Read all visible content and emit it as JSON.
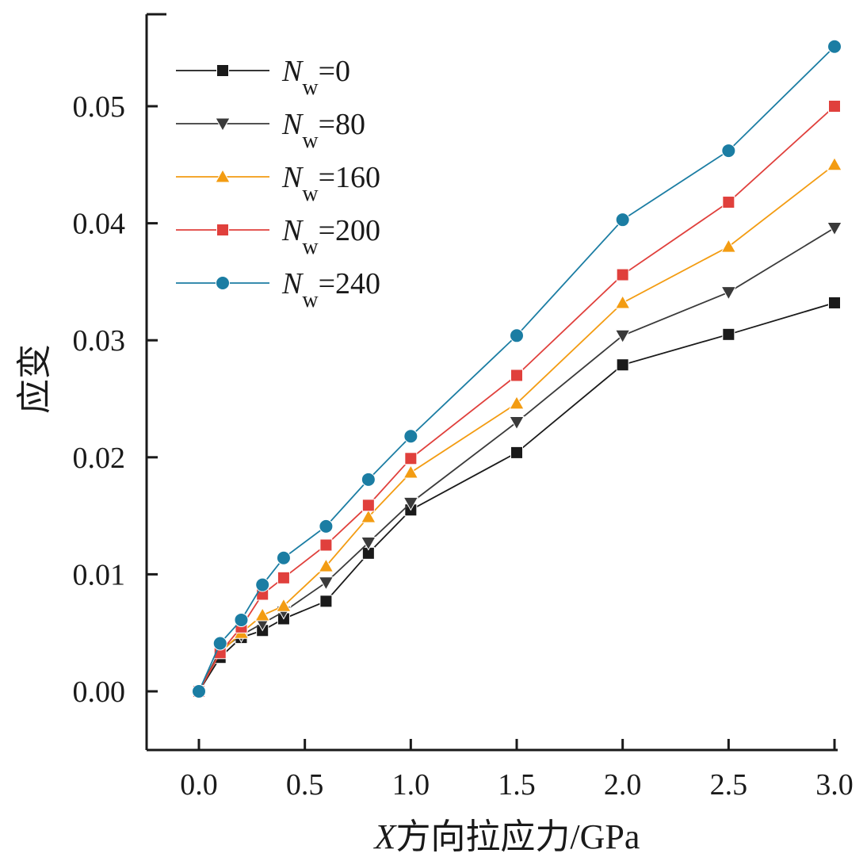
{
  "chart_data": {
    "type": "line",
    "xlabel_var": "X",
    "xlabel_rest": "方向拉应力/GPa",
    "ylabel": "应变",
    "xlim": [
      -0.25,
      3.0
    ],
    "ylim": [
      -0.0052,
      0.058
    ],
    "x_ticks": [
      "0.0",
      "0.5",
      "1.0",
      "1.5",
      "2.0",
      "2.5",
      "3.0"
    ],
    "y_ticks": [
      "0.00",
      "0.01",
      "0.02",
      "0.03",
      "0.04",
      "0.05"
    ],
    "x": [
      0,
      0.1,
      0.2,
      0.3,
      0.4,
      0.6,
      0.8,
      1.0,
      1.5,
      2.0,
      2.5,
      3.0
    ],
    "legend_position": "top-left",
    "series": [
      {
        "name": "N",
        "sub": "w",
        "eq": "=0",
        "marker": "square",
        "color": "#1a1a1a",
        "values": [
          0,
          0.0029,
          0.0046,
          0.0052,
          0.0062,
          0.0077,
          0.0118,
          0.0155,
          0.0204,
          0.0279,
          0.0305,
          0.0332
        ]
      },
      {
        "name": "N",
        "sub": "w",
        "eq": "=80",
        "marker": "triangle-down",
        "color": "#3a3a3a",
        "values": [
          0,
          0.0035,
          0.0048,
          0.0058,
          0.0068,
          0.0093,
          0.0127,
          0.0161,
          0.023,
          0.0304,
          0.0341,
          0.0396
        ]
      },
      {
        "name": "N",
        "sub": "w",
        "eq": "=160",
        "marker": "triangle-up",
        "color": "#f39c12",
        "values": [
          0,
          0.0033,
          0.005,
          0.0065,
          0.0073,
          0.0107,
          0.0149,
          0.0187,
          0.0246,
          0.0332,
          0.038,
          0.045
        ]
      },
      {
        "name": "N",
        "sub": "w",
        "eq": "=200",
        "marker": "square",
        "color": "#e0403c",
        "values": [
          0,
          0.0033,
          0.0055,
          0.0083,
          0.0097,
          0.0125,
          0.0159,
          0.0199,
          0.027,
          0.0356,
          0.0418,
          0.05
        ]
      },
      {
        "name": "N",
        "sub": "w",
        "eq": "=240",
        "marker": "circle",
        "color": "#1b7da3",
        "values": [
          0,
          0.0041,
          0.0061,
          0.0091,
          0.0114,
          0.0141,
          0.0181,
          0.0218,
          0.0304,
          0.0403,
          0.0462,
          0.0551
        ]
      }
    ]
  }
}
